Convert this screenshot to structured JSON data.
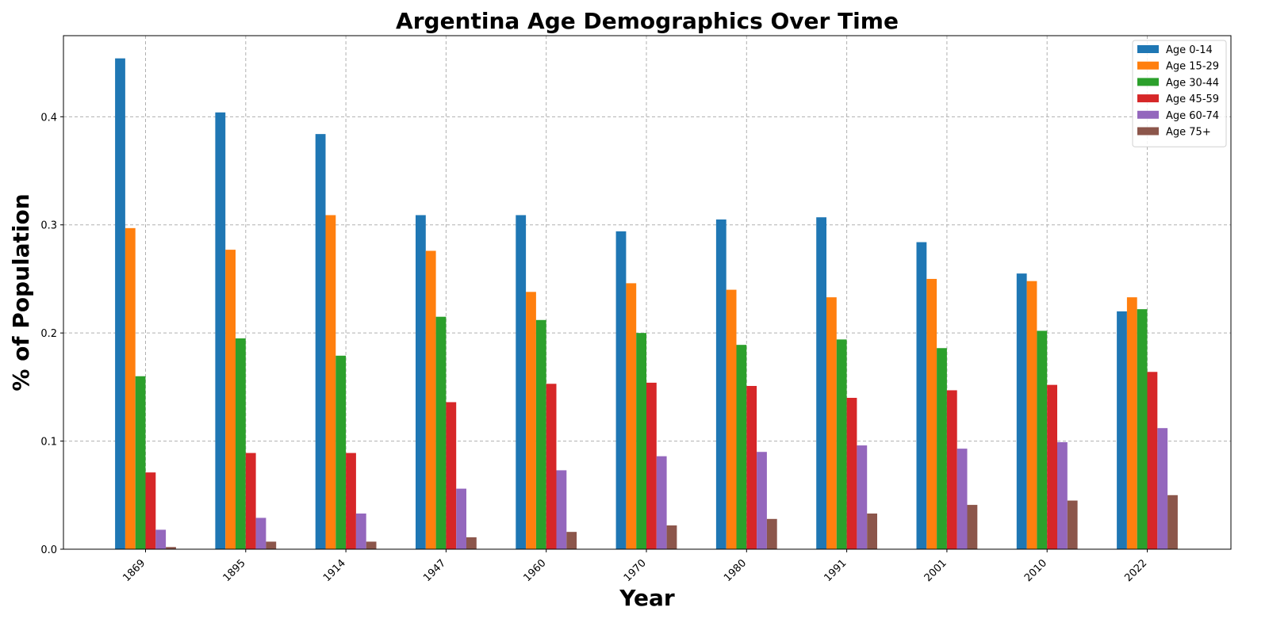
{
  "chart_data": {
    "type": "bar",
    "title": "Argentina Age Demographics Over Time",
    "xlabel": "Year",
    "ylabel": "% of Population",
    "categories": [
      "1869",
      "1895",
      "1914",
      "1947",
      "1960",
      "1970",
      "1980",
      "1991",
      "2001",
      "2010",
      "2022"
    ],
    "ylim": [
      0,
      0.475
    ],
    "yticks": [
      0.0,
      0.1,
      0.2,
      0.3,
      0.4
    ],
    "ytick_labels": [
      "0.0",
      "0.1",
      "0.2",
      "0.3",
      "0.4"
    ],
    "grid": true,
    "legend_position": "top-right",
    "series": [
      {
        "name": "Age 0-14",
        "color": "#1f77b4",
        "values": [
          0.454,
          0.404,
          0.384,
          0.309,
          0.309,
          0.294,
          0.305,
          0.307,
          0.284,
          0.255,
          0.22
        ]
      },
      {
        "name": "Age 15-29",
        "color": "#ff7f0e",
        "values": [
          0.297,
          0.277,
          0.309,
          0.276,
          0.238,
          0.246,
          0.24,
          0.233,
          0.25,
          0.248,
          0.233
        ]
      },
      {
        "name": "Age 30-44",
        "color": "#2ca02c",
        "values": [
          0.16,
          0.195,
          0.179,
          0.215,
          0.212,
          0.2,
          0.189,
          0.194,
          0.186,
          0.202,
          0.222
        ]
      },
      {
        "name": "Age 45-59",
        "color": "#d62728",
        "values": [
          0.071,
          0.089,
          0.089,
          0.136,
          0.153,
          0.154,
          0.151,
          0.14,
          0.147,
          0.152,
          0.164
        ]
      },
      {
        "name": "Age 60-74",
        "color": "#9467bd",
        "values": [
          0.018,
          0.029,
          0.033,
          0.056,
          0.073,
          0.086,
          0.09,
          0.096,
          0.093,
          0.099,
          0.112
        ]
      },
      {
        "name": "Age 75+",
        "color": "#8c564b",
        "values": [
          0.002,
          0.007,
          0.007,
          0.011,
          0.016,
          0.022,
          0.028,
          0.033,
          0.041,
          0.045,
          0.05
        ]
      }
    ]
  }
}
